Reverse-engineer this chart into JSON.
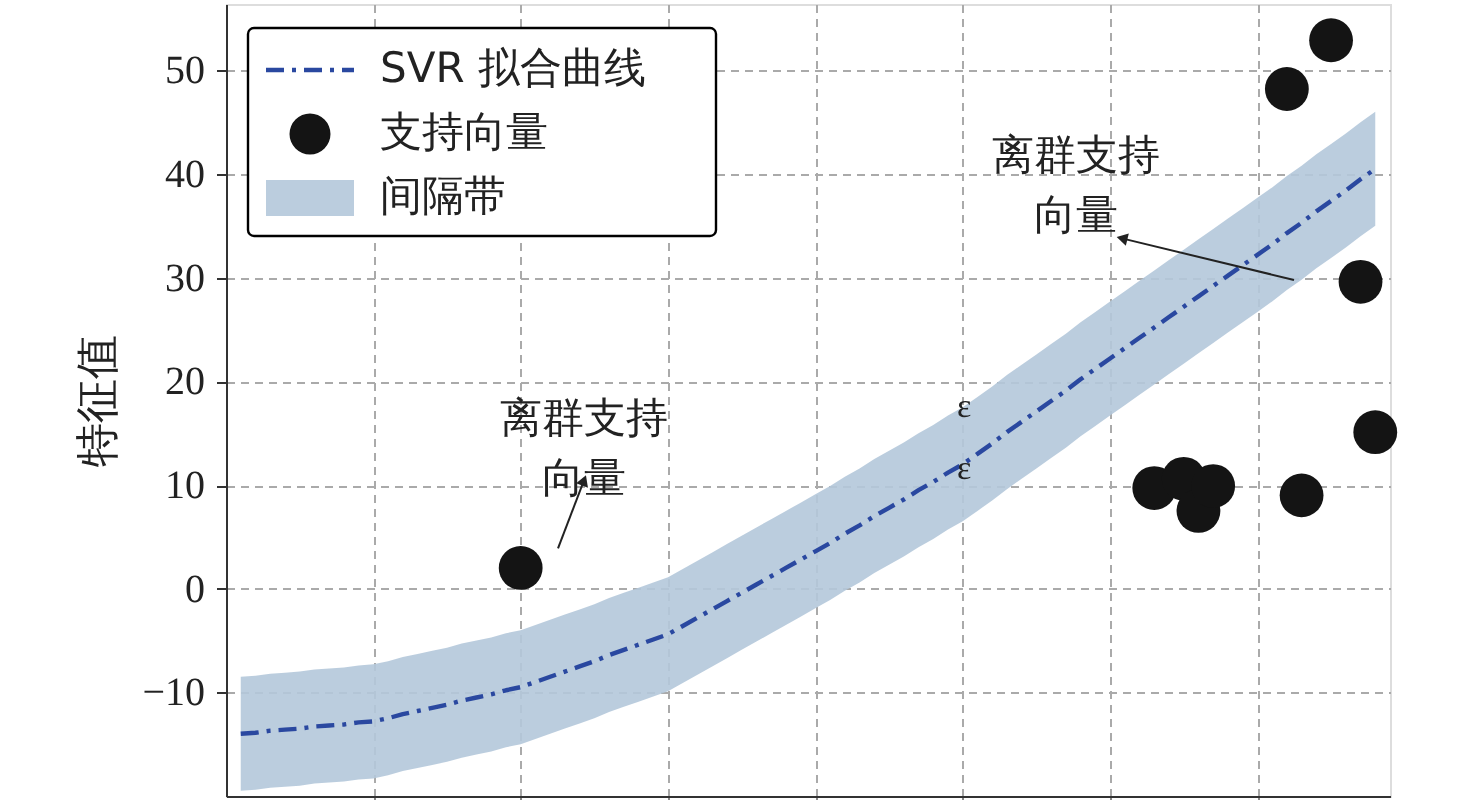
{
  "chart_data": {
    "type": "line",
    "ylabel": "特征值",
    "ylim": [
      -20,
      56.4
    ],
    "categories": [
      null,
      null,
      null,
      null,
      null,
      null,
      null,
      null,
      null,
      null,
      null,
      null,
      null,
      null,
      null,
      null,
      null,
      null,
      null,
      null,
      null,
      null,
      null,
      null,
      null,
      null,
      null,
      null,
      null,
      null,
      null,
      null,
      null,
      null,
      null,
      null,
      null,
      null,
      null,
      null,
      null,
      null,
      null,
      null,
      null,
      null,
      null,
      null,
      null,
      null,
      null,
      null,
      null,
      null,
      null,
      null,
      null,
      null,
      null,
      null,
      null,
      null,
      null,
      null,
      null,
      null,
      null,
      null,
      null,
      null,
      null,
      null,
      null,
      null,
      null,
      null,
      null,
      null
    ],
    "yticks": [
      -10,
      0,
      10,
      20,
      30,
      40,
      50
    ],
    "tick_labels": "y",
    "grid": true,
    "legend": "top left",
    "series": [
      {
        "name": "SVR 拟合曲线",
        "color": "#2a48a0",
        "line_style": "dashdot",
        "upper": [
          -8.5,
          -8.4,
          -8.2,
          -8.1,
          -8.0,
          -7.8,
          -7.7,
          -7.6,
          -7.4,
          -7.3,
          -7.0,
          -6.6,
          -6.3,
          -6.0,
          -5.7,
          -5.3,
          -5.0,
          -4.7,
          -4.3,
          -4.0,
          -3.5,
          -3.0,
          -2.5,
          -2.0,
          -1.5,
          -0.9,
          -0.4,
          0.1,
          0.6,
          1.1,
          1.9,
          2.7,
          3.5,
          4.3,
          5.1,
          5.9,
          6.7,
          7.5,
          8.3,
          9.1,
          9.9,
          10.8,
          11.6,
          12.5,
          13.3,
          14.1,
          15.0,
          15.8,
          16.7,
          17.5,
          18.5,
          19.5,
          20.6,
          21.6,
          22.6,
          23.6,
          24.6,
          25.7,
          26.7,
          27.7,
          28.7,
          29.7,
          30.7,
          31.7,
          32.7,
          33.7,
          34.7,
          35.7,
          36.7,
          37.7,
          38.7,
          39.8,
          40.8,
          41.9,
          42.9,
          43.9,
          45.0,
          46.0
        ],
        "lower": [
          -19.5,
          -19.4,
          -19.2,
          -19.1,
          -19.0,
          -18.8,
          -18.7,
          -18.6,
          -18.4,
          -18.3,
          -18.0,
          -17.6,
          -17.3,
          -17.0,
          -16.7,
          -16.3,
          -16.0,
          -15.7,
          -15.3,
          -15.0,
          -14.5,
          -14.0,
          -13.5,
          -13.0,
          -12.5,
          -11.9,
          -11.4,
          -10.9,
          -10.4,
          -9.9,
          -9.1,
          -8.3,
          -7.5,
          -6.7,
          -5.9,
          -5.1,
          -4.3,
          -3.5,
          -2.7,
          -1.9,
          -1.1,
          -0.2,
          0.6,
          1.5,
          2.3,
          3.1,
          4.0,
          4.8,
          5.7,
          6.5,
          7.5,
          8.5,
          9.6,
          10.6,
          11.6,
          12.6,
          13.6,
          14.7,
          15.7,
          16.7,
          17.7,
          18.7,
          19.7,
          20.7,
          21.7,
          22.7,
          23.7,
          24.7,
          25.7,
          26.7,
          27.7,
          28.8,
          29.8,
          30.9,
          31.9,
          32.9,
          34.0,
          35.0
        ],
        "values": [
          -14.0,
          -13.9,
          -13.7,
          -13.6,
          -13.5,
          -13.3,
          -13.2,
          -13.1,
          -12.9,
          -12.8,
          -12.5,
          -12.1,
          -11.8,
          -11.5,
          -11.2,
          -10.8,
          -10.5,
          -10.2,
          -9.8,
          -9.5,
          -9.0,
          -8.5,
          -8.0,
          -7.5,
          -7.0,
          -6.4,
          -5.9,
          -5.4,
          -4.9,
          -4.4,
          -3.6,
          -2.8,
          -2.0,
          -1.2,
          -0.4,
          0.4,
          1.2,
          2.0,
          2.8,
          3.6,
          4.4,
          5.3,
          6.1,
          7.0,
          7.8,
          8.6,
          9.5,
          10.3,
          11.2,
          12.0,
          13.0,
          14.0,
          15.1,
          16.1,
          17.1,
          18.1,
          19.1,
          20.2,
          21.2,
          22.2,
          23.2,
          24.2,
          25.2,
          26.2,
          27.2,
          28.2,
          29.2,
          30.2,
          31.2,
          32.2,
          33.2,
          34.3,
          35.3,
          36.4,
          37.4,
          38.4,
          39.5,
          40.5
        ]
      },
      {
        "name": "支持向量",
        "type": "scatter",
        "color": "#141414",
        "marker": "circle",
        "values": [
          null,
          null,
          null,
          null,
          null,
          null,
          null,
          null,
          null,
          null,
          null,
          null,
          null,
          null,
          null,
          null,
          null,
          null,
          null,
          2,
          null,
          null,
          null,
          null,
          null,
          null,
          null,
          null,
          null,
          null,
          null,
          null,
          null,
          null,
          null,
          null,
          null,
          null,
          null,
          null,
          null,
          null,
          null,
          null,
          null,
          null,
          null,
          null,
          null,
          null,
          null,
          null,
          null,
          null,
          null,
          null,
          null,
          null,
          null,
          null,
          null,
          null,
          9.7,
          null,
          10.6,
          7.5,
          9.9,
          null,
          null,
          null,
          null,
          48.2,
          9.0,
          null,
          52.9,
          null,
          29.6,
          15.1
        ]
      },
      {
        "name": "间隔带",
        "type": "area",
        "color": "#b4c8da",
        "values": [
          null,
          null,
          null,
          null,
          null,
          null,
          null,
          null,
          null,
          null,
          null,
          null,
          null,
          null,
          null,
          null,
          null,
          null,
          null,
          null,
          null,
          null,
          null,
          null,
          null,
          null,
          null,
          null,
          null,
          null,
          null,
          null,
          null,
          null,
          null,
          null,
          null,
          null,
          null,
          null,
          null,
          null,
          null,
          null,
          null,
          null,
          null,
          null,
          null,
          null,
          null,
          null,
          null,
          null,
          null,
          null,
          null,
          null,
          null,
          null,
          null,
          null,
          null,
          null,
          null,
          null,
          null,
          null,
          null,
          null,
          null,
          null,
          null,
          null,
          null,
          null,
          null,
          null
        ]
      }
    ],
    "annotations": [
      "离群支持向量",
      "离群支持向量",
      "ε",
      "ε"
    ]
  }
}
